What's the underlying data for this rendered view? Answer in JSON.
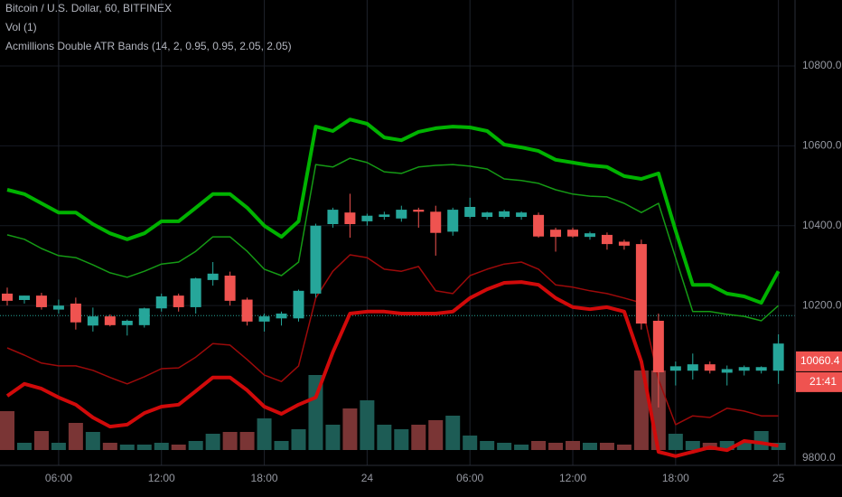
{
  "chart_data": {
    "type": "candlestick",
    "title": "Bitcoin / U.S. Dollar, 60, BITFINEX",
    "legend_lines": [
      "Vol (1)",
      "Acmillions Double ATR Bands (14, 2, 0.95, 0.95, 2.05, 2.05)"
    ],
    "categories": [
      null,
      null,
      null,
      "06:00",
      null,
      null,
      null,
      null,
      null,
      "12:00",
      null,
      null,
      null,
      null,
      null,
      "18:00",
      null,
      null,
      null,
      null,
      null,
      "24",
      null,
      null,
      null,
      null,
      null,
      "06:00",
      null,
      null,
      null,
      null,
      null,
      "12:00",
      null,
      null,
      null,
      null,
      null,
      "18:00",
      null,
      null,
      null,
      null,
      null,
      "25"
    ],
    "open": [
      10230,
      10214,
      10225,
      10190,
      10205,
      10150,
      10173,
      10151,
      10151,
      10193,
      10225,
      10196,
      10264,
      10275,
      10215,
      10160,
      10168,
      10168,
      10230,
      10404,
      10433,
      10411,
      10422,
      10418,
      10440,
      10435,
      10385,
      10422,
      10422,
      10422,
      10422,
      10427,
      10390,
      10390,
      10372,
      10377,
      10360,
      10354,
      10162,
      10037,
      10037,
      10053,
      10032,
      10037,
      10037,
      10037
    ],
    "high": [
      10245,
      10225,
      10232,
      10215,
      10220,
      10195,
      10178,
      10165,
      10195,
      10230,
      10230,
      10270,
      10309,
      10285,
      10220,
      10180,
      10185,
      10240,
      10405,
      10445,
      10480,
      10430,
      10435,
      10450,
      10445,
      10450,
      10445,
      10470,
      10435,
      10440,
      10436,
      10433,
      10395,
      10395,
      10385,
      10383,
      10365,
      10365,
      10180,
      10060,
      10080,
      10060,
      10050,
      10050,
      10048,
      10128
    ],
    "low": [
      10200,
      10205,
      10190,
      10180,
      10140,
      10135,
      10148,
      10125,
      10145,
      10185,
      10185,
      10180,
      10250,
      10200,
      10150,
      10135,
      10150,
      10160,
      10220,
      10395,
      10370,
      10400,
      10415,
      10410,
      10395,
      10325,
      10375,
      10418,
      10415,
      10418,
      10415,
      10370,
      10335,
      10370,
      10365,
      10340,
      10340,
      10140,
      9945,
      10000,
      10015,
      10030,
      10000,
      10025,
      10030,
      10004
    ],
    "close": [
      10212,
      10225,
      10196,
      10200,
      10158,
      10173,
      10151,
      10162,
      10193,
      10223,
      10196,
      10268,
      10280,
      10212,
      10160,
      10173,
      10180,
      10237,
      10400,
      10440,
      10404,
      10425,
      10428,
      10440,
      10435,
      10382,
      10440,
      10447,
      10433,
      10436,
      10433,
      10373,
      10372,
      10373,
      10381,
      10354,
      10350,
      10155,
      10033,
      10048,
      10053,
      10037,
      10041,
      10046,
      10046,
      10105
    ],
    "volume": [
      43,
      8,
      21,
      8,
      30,
      20,
      8,
      6,
      6,
      8,
      6,
      10,
      18,
      20,
      20,
      35,
      10,
      23,
      83,
      28,
      46,
      55,
      28,
      23,
      28,
      33,
      38,
      16,
      10,
      8,
      6,
      10,
      8,
      10,
      8,
      8,
      6,
      88,
      88,
      18,
      10,
      8,
      10,
      8,
      21,
      8
    ],
    "up_color": "#26a69a",
    "down_color": "#ef5350",
    "up_volume_color": "#1d5c55",
    "down_volume_color": "#7a3535",
    "bands": [
      {
        "color": "#00b300",
        "width": 4,
        "values": [
          10490,
          10479,
          10456,
          10433,
          10433,
          10404,
          10381,
          10366,
          10381,
          10411,
          10411,
          10445,
          10479,
          10479,
          10445,
          10400,
          10372,
          10411,
          10648,
          10637,
          10666,
          10655,
          10621,
          10614,
          10635,
          10644,
          10648,
          10646,
          10637,
          10603,
          10596,
          10587,
          10565,
          10558,
          10551,
          10547,
          10524,
          10517,
          10531,
          10388,
          10252,
          10252,
          10230,
          10223,
          10207,
          10286
        ]
      },
      {
        "color": "#159a15",
        "width": 1.5,
        "values": [
          10377,
          10366,
          10343,
          10325,
          10320,
          10302,
          10282,
          10271,
          10286,
          10304,
          10309,
          10336,
          10372,
          10372,
          10336,
          10291,
          10275,
          10309,
          10553,
          10547,
          10569,
          10558,
          10535,
          10531,
          10547,
          10551,
          10553,
          10549,
          10542,
          10517,
          10513,
          10506,
          10490,
          10479,
          10474,
          10472,
          10456,
          10433,
          10456,
          10320,
          10185,
          10185,
          10178,
          10173,
          10162,
          10200
        ]
      },
      {
        "color": "#9c0a0a",
        "width": 1.5,
        "values": [
          10094,
          10076,
          10056,
          10049,
          10049,
          10038,
          10020,
          10004,
          10022,
          10042,
          10044,
          10071,
          10105,
          10101,
          10065,
          10026,
          10010,
          10049,
          10219,
          10286,
          10327,
          10320,
          10291,
          10286,
          10298,
          10237,
          10230,
          10275,
          10291,
          10304,
          10309,
          10291,
          10252,
          10246,
          10237,
          10230,
          10219,
          10207,
          10015,
          9902,
          9924,
          9920,
          9943,
          9936,
          9924,
          9924
        ]
      },
      {
        "color": "#d10a0a",
        "width": 4,
        "values": [
          9974,
          10004,
          9992,
          9970,
          9952,
          9920,
          9897,
          9902,
          9931,
          9947,
          9952,
          9986,
          10020,
          10020,
          9988,
          9947,
          9929,
          9952,
          9970,
          10083,
          10180,
          10185,
          10185,
          10180,
          10180,
          10180,
          10185,
          10219,
          10241,
          10257,
          10259,
          10252,
          10219,
          10196,
          10191,
          10196,
          10185,
          10060,
          9834,
          9823,
          9834,
          9845,
          9838,
          9861,
          9856,
          9849
        ]
      }
    ],
    "price_line": 10175,
    "price_line_color": "#26a69a",
    "last_price": 10060.4,
    "countdown": "21:41",
    "ylim": [
      9800,
      10965
    ],
    "yticks": [
      {
        "value": 9800,
        "label": "9800.0"
      },
      {
        "value": 10200,
        "label": "10200.0"
      },
      {
        "value": 10400,
        "label": "10400.0"
      },
      {
        "value": 10600,
        "label": "10600.0"
      },
      {
        "value": 10800,
        "label": "10800.0"
      }
    ],
    "grid": true
  }
}
